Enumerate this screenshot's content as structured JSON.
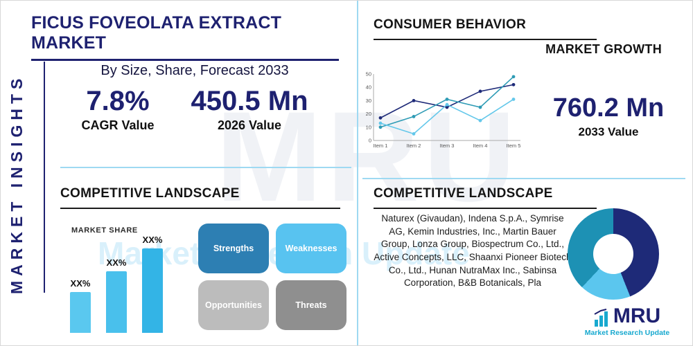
{
  "colors": {
    "navy": "#1e2170",
    "teal": "#18a9cf",
    "lightblue": "#54c4ee",
    "divider": "#9ed9f2"
  },
  "watermark": {
    "text": "MRU",
    "subtext": "Market Research Update"
  },
  "sidebar": {
    "vertical_label": "MARKET INSIGHTS"
  },
  "header": {
    "title": "FICUS FOVEOLATA EXTRACT MARKET",
    "subtitle": "By Size, Share, Forecast 2033"
  },
  "stats": {
    "cagr": {
      "value": "7.8%",
      "label": "CAGR Value"
    },
    "v2026": {
      "value": "450.5 Mn",
      "label": "2026 Value"
    },
    "v2033": {
      "value": "760.2 Mn",
      "label": "2033 Value"
    }
  },
  "consumer": {
    "title": "CONSUMER BEHAVIOR",
    "growth_label": "MARKET GROWTH"
  },
  "landscape_left": {
    "title": "COMPETITIVE LANDSCAPE",
    "market_share_label": "MARKET SHARE"
  },
  "swot": {
    "items": [
      {
        "label": "Strengths",
        "color": "#2d7fb3"
      },
      {
        "label": "Weaknesses",
        "color": "#58c3f0"
      },
      {
        "label": "Opportunities",
        "color": "#bcbcbc"
      },
      {
        "label": "Threats",
        "color": "#8f8f8f"
      }
    ]
  },
  "landscape_right": {
    "title": "COMPETITIVE LANDSCAPE",
    "companies": "Naturex (Givaudan), Indena S.p.A., Symrise AG, Kemin Industries, Inc., Martin Bauer Group, Lonza Group, Biospectrum Co., Ltd., Active Concepts, LLC, Shaanxi Pioneer Biotech Co., Ltd., Hunan NutraMax Inc., Sabinsa Corporation, B&B Botanicals, Pla"
  },
  "logo": {
    "text": "MRU",
    "subtitle": "Market Research Update"
  },
  "chart_data": [
    {
      "type": "line",
      "title": "Consumer behavior market growth trend",
      "x": [
        "Item 1",
        "Item 2",
        "Item 3",
        "Item 4",
        "Item 5"
      ],
      "series": [
        {
          "name": "series-navy",
          "color": "#1e2a78",
          "values": [
            17,
            30,
            25,
            37,
            42
          ]
        },
        {
          "name": "series-teal",
          "color": "#2e9bb5",
          "values": [
            10,
            18,
            31,
            25,
            48
          ]
        },
        {
          "name": "series-lightblue",
          "color": "#63c7ea",
          "values": [
            13,
            5,
            27,
            15,
            31
          ]
        }
      ],
      "ylim": [
        0,
        50
      ],
      "yticks": [
        0,
        10,
        20,
        30,
        40,
        50
      ],
      "legend": false,
      "grid": false
    },
    {
      "type": "bar",
      "title": "MARKET SHARE",
      "categories": [
        "XX%",
        "XX%",
        "XX%"
      ],
      "values": [
        30,
        45,
        62
      ],
      "bar_colors": [
        "#5ac8ef",
        "#49c0ec",
        "#33b4e6"
      ],
      "ylabel": "",
      "xlabel": ""
    },
    {
      "type": "pie",
      "title": "Competitive landscape market share donut",
      "donut": true,
      "slices": [
        {
          "label": "segment-1",
          "value": 44,
          "color": "#1e2a78"
        },
        {
          "label": "segment-2",
          "value": 18,
          "color": "#5bc6ee"
        },
        {
          "label": "segment-3",
          "value": 38,
          "color": "#1d91b4"
        }
      ]
    }
  ]
}
